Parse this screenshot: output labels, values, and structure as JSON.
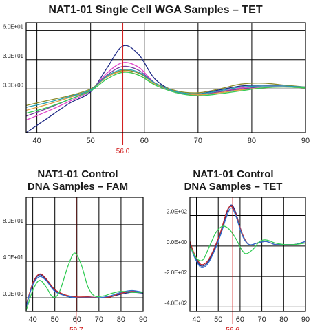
{
  "colors": {
    "navy": "#1f2a86",
    "purple": "#7b3fa0",
    "magenta": "#e03fc8",
    "teal": "#22a0b0",
    "olive": "#8a8a2a",
    "orange": "#e0a040",
    "green": "#33cc55",
    "blue": "#3070d0",
    "red": "#c0282c",
    "marker": "#d01818"
  },
  "chart_data": [
    {
      "type": "line",
      "title": "NAT1-01 Single Cell WGA Samples – TET",
      "xlim": [
        38,
        90
      ],
      "ylim": [
        -4.5,
        6.8
      ],
      "xticks": [
        40,
        50,
        60,
        70,
        80,
        90
      ],
      "yticks": [
        0,
        3,
        6
      ],
      "ytick_labels": [
        "0.0E+00",
        "3.0E+01",
        "6.0E+01"
      ],
      "marker": {
        "x": 56.0,
        "label": "56.0"
      },
      "series": [
        {
          "color": "navy",
          "x": [
            38,
            42,
            46,
            50,
            53,
            56,
            59,
            62,
            66,
            70,
            74,
            78,
            82,
            86,
            90
          ],
          "y": [
            -4.5,
            -3.0,
            -1.5,
            -0.3,
            2.1,
            4.4,
            3.5,
            1.0,
            -0.3,
            -0.5,
            -0.1,
            0.3,
            0.4,
            0.3,
            0.2
          ]
        },
        {
          "color": "magenta",
          "x": [
            38,
            42,
            46,
            50,
            53,
            56,
            59,
            62,
            66,
            70,
            74,
            78,
            82,
            86,
            90
          ],
          "y": [
            -3.2,
            -2.3,
            -1.3,
            -0.2,
            1.6,
            2.7,
            2.2,
            0.6,
            -0.4,
            -0.6,
            -0.3,
            0.1,
            0.3,
            0.3,
            0.2
          ]
        },
        {
          "color": "purple",
          "x": [
            38,
            42,
            46,
            50,
            53,
            56,
            59,
            62,
            66,
            70,
            74,
            78,
            82,
            86,
            90
          ],
          "y": [
            -2.8,
            -2.0,
            -1.1,
            -0.1,
            1.4,
            2.3,
            1.9,
            0.6,
            -0.3,
            -0.6,
            -0.3,
            0.0,
            0.2,
            0.2,
            0.1
          ]
        },
        {
          "color": "olive",
          "x": [
            38,
            42,
            46,
            50,
            53,
            56,
            59,
            62,
            66,
            70,
            74,
            78,
            82,
            86,
            90
          ],
          "y": [
            -1.7,
            -1.2,
            -0.7,
            0.0,
            1.2,
            1.9,
            1.6,
            0.6,
            -0.2,
            -0.4,
            0.0,
            0.5,
            0.6,
            0.4,
            0.2
          ]
        },
        {
          "color": "orange",
          "x": [
            38,
            42,
            46,
            50,
            53,
            56,
            59,
            62,
            66,
            70,
            74,
            78,
            82,
            86,
            90
          ],
          "y": [
            -2.2,
            -1.6,
            -0.9,
            -0.1,
            1.2,
            1.8,
            1.4,
            0.5,
            -0.3,
            -0.6,
            -0.4,
            -0.1,
            0.1,
            0.2,
            0.1
          ]
        },
        {
          "color": "green",
          "x": [
            38,
            42,
            46,
            50,
            53,
            56,
            59,
            62,
            66,
            70,
            74,
            78,
            82,
            86,
            90
          ],
          "y": [
            -2.5,
            -1.9,
            -1.1,
            -0.2,
            1.0,
            1.7,
            1.4,
            0.4,
            -0.4,
            -0.7,
            -0.5,
            -0.2,
            0.1,
            0.2,
            0.1
          ]
        },
        {
          "color": "teal",
          "x": [
            38,
            42,
            46,
            50,
            53,
            56,
            59,
            62,
            66,
            70,
            74,
            78,
            82,
            86,
            90
          ],
          "y": [
            -1.9,
            -1.4,
            -0.8,
            -0.1,
            1.3,
            2.0,
            1.7,
            0.6,
            -0.3,
            -0.5,
            -0.2,
            0.2,
            0.3,
            0.3,
            0.2
          ]
        }
      ]
    },
    {
      "type": "line",
      "title": "NAT1-01 Control DNA Samples – FAM",
      "title_lines": [
        "NAT1-01 Control",
        "DNA Samples – FAM"
      ],
      "xlim": [
        37,
        90
      ],
      "ylim": [
        -1.5,
        11
      ],
      "xticks": [
        40,
        50,
        60,
        70,
        80,
        90
      ],
      "yticks": [
        0,
        4,
        8
      ],
      "ytick_labels": [
        "0.0E+00",
        "4.0E+01",
        "8.0E+01"
      ],
      "marker": {
        "x": 59.7,
        "label": "59.7"
      },
      "series": [
        {
          "color": "navy",
          "x": [
            37,
            40,
            43,
            46,
            50,
            55,
            60,
            65,
            70,
            75,
            80,
            85,
            90
          ],
          "y": [
            -1.0,
            1.5,
            2.5,
            2.0,
            0.8,
            0.2,
            0.0,
            0.1,
            0.0,
            0.1,
            0.4,
            0.6,
            0.5
          ]
        },
        {
          "color": "red",
          "x": [
            37,
            40,
            43,
            46,
            50,
            55,
            60,
            65,
            70,
            75,
            80,
            85,
            90
          ],
          "y": [
            -0.8,
            1.6,
            2.6,
            2.1,
            0.9,
            0.3,
            0.1,
            0.1,
            0.0,
            0.1,
            0.5,
            0.7,
            0.6
          ]
        },
        {
          "color": "blue",
          "x": [
            37,
            40,
            43,
            46,
            50,
            55,
            60,
            65,
            70,
            75,
            80,
            85,
            90
          ],
          "y": [
            -0.9,
            1.4,
            2.3,
            1.9,
            0.7,
            0.2,
            0.0,
            0.0,
            0.0,
            0.2,
            0.6,
            0.8,
            0.6
          ]
        },
        {
          "color": "green",
          "x": [
            37,
            40,
            43,
            46,
            49,
            52,
            56,
            59,
            62,
            65,
            68,
            72,
            76,
            80,
            85,
            90
          ],
          "y": [
            -1.4,
            0.8,
            1.9,
            1.2,
            0.1,
            0.6,
            3.5,
            4.9,
            3.6,
            1.2,
            0.2,
            0.2,
            0.5,
            0.7,
            0.6,
            0.6
          ]
        }
      ]
    },
    {
      "type": "line",
      "title": "NAT1-01 Control DNA Samples – TET",
      "title_lines": [
        "NAT1-01 Control",
        "DNA Samples – TET"
      ],
      "xlim": [
        37,
        90
      ],
      "ylim": [
        -4.3,
        3.2
      ],
      "xticks": [
        40,
        50,
        60,
        70,
        80,
        90
      ],
      "yticks": [
        -4,
        -2,
        0,
        2
      ],
      "ytick_labels": [
        "-4.0E+02",
        "-2.0E+02",
        "0.0E+00",
        "2.0E+02"
      ],
      "marker": {
        "x": 56.6,
        "label": "56.6"
      },
      "series": [
        {
          "color": "navy",
          "x": [
            37,
            39,
            42,
            45,
            48,
            51,
            54,
            56,
            58,
            61,
            64,
            68,
            72,
            76,
            80,
            85,
            90
          ],
          "y": [
            0.2,
            -0.6,
            -1.3,
            -1.1,
            -0.3,
            0.8,
            2.2,
            2.7,
            2.2,
            0.8,
            0.1,
            0.2,
            0.3,
            0.1,
            0.1,
            0.1,
            0.3
          ]
        },
        {
          "color": "red",
          "x": [
            37,
            39,
            42,
            45,
            48,
            51,
            54,
            56,
            58,
            61,
            64,
            68,
            72,
            76,
            80,
            85,
            90
          ],
          "y": [
            0.3,
            -0.5,
            -1.2,
            -1.0,
            -0.2,
            0.9,
            2.3,
            2.6,
            2.1,
            0.8,
            0.1,
            0.2,
            0.3,
            0.1,
            0.1,
            0.1,
            0.3
          ]
        },
        {
          "color": "blue",
          "x": [
            37,
            39,
            42,
            45,
            48,
            51,
            54,
            56,
            58,
            61,
            64,
            68,
            72,
            76,
            80,
            85,
            90
          ],
          "y": [
            0.1,
            -0.7,
            -1.4,
            -1.2,
            -0.4,
            0.7,
            2.0,
            2.5,
            2.0,
            0.7,
            0.1,
            0.2,
            0.3,
            0.1,
            0.1,
            0.1,
            0.3
          ]
        },
        {
          "color": "green",
          "x": [
            37,
            40,
            43,
            46,
            49,
            52,
            55,
            58,
            61,
            63,
            66,
            69,
            72,
            76,
            80,
            85,
            90
          ],
          "y": [
            0.0,
            -0.8,
            -0.9,
            0.0,
            0.9,
            1.3,
            1.1,
            0.5,
            -0.3,
            -0.5,
            -0.2,
            0.3,
            0.4,
            0.2,
            0.1,
            0.1,
            0.2
          ]
        }
      ]
    }
  ]
}
